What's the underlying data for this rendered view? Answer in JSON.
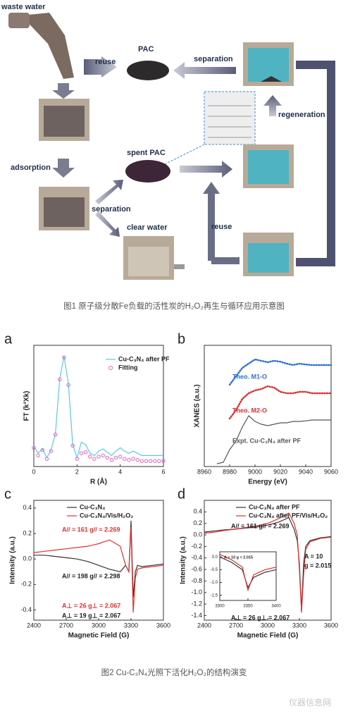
{
  "figure1": {
    "labels": [
      "waste water",
      "reuse",
      "PAC",
      "separation",
      "regeneration",
      "adsorption",
      "spent PAC",
      "separation",
      "clear water",
      "reuse"
    ]
  },
  "captions": [
    "图1 原子级分散Fe负载的活性炭的H₂O₂再生与循环应用示意图",
    "图2 Cu-C₃N₄光照下活化H₂O₂的结构演变"
  ],
  "watermark": "仪器信息网",
  "chart_data": [
    {
      "type": "line",
      "panel": "a",
      "xlabel": "R (Å)",
      "ylabel": "FT (k³Xk)",
      "xlim": [
        0,
        6
      ],
      "xticks": [
        0,
        2,
        4,
        6
      ],
      "ylim": [
        0,
        1.1
      ],
      "legend": "upper right",
      "x": [
        0,
        0.2,
        0.4,
        0.6,
        0.8,
        1,
        1.2,
        1.4,
        1.6,
        1.8,
        2,
        2.2,
        2.4,
        2.6,
        2.8,
        3,
        3.2,
        3.4,
        3.6,
        3.8,
        4,
        4.2,
        4.4,
        4.6,
        4.8,
        5,
        5.2,
        5.4,
        5.6,
        5.8,
        6
      ],
      "series": [
        {
          "name": "Cu-C₃N₄ after PF",
          "color": "#5bc8e8",
          "style": "line",
          "values": [
            0.18,
            0.12,
            0.16,
            0.08,
            0.15,
            0.3,
            0.8,
            1.0,
            0.75,
            0.2,
            0.08,
            0.22,
            0.2,
            0.12,
            0.1,
            0.14,
            0.16,
            0.13,
            0.1,
            0.14,
            0.17,
            0.14,
            0.12,
            0.14,
            0.12,
            0.1,
            0.1,
            0.1,
            0.1,
            0.1,
            0.1
          ]
        },
        {
          "name": "Fitting",
          "color": "#e060c0",
          "style": "circles",
          "values": [
            0.17,
            0.1,
            0.15,
            0.07,
            0.14,
            0.29,
            0.79,
            0.99,
            0.74,
            0.19,
            0.07,
            0.12,
            0.13,
            0.09,
            0.07,
            0.09,
            0.1,
            0.08,
            0.06,
            0.08,
            0.09,
            0.07,
            0.06,
            0.07,
            0.06,
            0.05,
            0.05,
            0.05,
            0.05,
            0.05,
            0.05
          ]
        }
      ]
    },
    {
      "type": "line",
      "panel": "b",
      "xlabel": "Energy (eV)",
      "ylabel": "XANES (a.u.)",
      "xlim": [
        8960,
        9060
      ],
      "xticks": [
        8960,
        8980,
        9000,
        9020,
        9040,
        9060
      ],
      "ylim": [
        0,
        4.3
      ],
      "legend": "inline",
      "x": [
        8970,
        8975,
        8980,
        8985,
        8990,
        8995,
        9000,
        9005,
        9010,
        9015,
        9020,
        9025,
        9030,
        9035,
        9040,
        9045,
        9050,
        9055,
        9060
      ],
      "series": [
        {
          "name": "Theo. M1-O",
          "color": "#2f6fd6",
          "style": "dotted",
          "values": [
            null,
            null,
            2.9,
            3.2,
            3.5,
            3.65,
            3.8,
            3.75,
            3.7,
            3.75,
            3.72,
            3.65,
            3.6,
            3.65,
            3.62,
            3.6,
            3.6,
            3.6,
            3.6
          ]
        },
        {
          "name": "Theo. M2-O",
          "color": "#e03030",
          "style": "dotted",
          "values": [
            null,
            null,
            1.7,
            2.0,
            2.4,
            2.6,
            2.7,
            2.75,
            2.85,
            2.8,
            2.65,
            2.6,
            2.6,
            2.65,
            2.65,
            2.6,
            2.6,
            2.6,
            2.6
          ]
        },
        {
          "name": "Expt. Cu-C₃N₄ after PF",
          "color": "#555555",
          "style": "line",
          "values": [
            0.1,
            0.15,
            0.6,
            0.9,
            1.4,
            1.8,
            1.6,
            1.5,
            1.45,
            1.5,
            1.55,
            1.55,
            1.6,
            1.6,
            1.62,
            1.65,
            1.65,
            1.65,
            1.65
          ]
        }
      ]
    },
    {
      "type": "line",
      "panel": "c",
      "xlabel": "Magnetic Field (G)",
      "ylabel": "Intensity (a.u.)",
      "xlim": [
        2400,
        3600
      ],
      "xticks": [
        2400,
        2700,
        3000,
        3300,
        3600
      ],
      "ylim": [
        -0.48,
        0.46
      ],
      "yticks": [
        -0.4,
        -0.2,
        {
          "value": 0,
          "label": "0.0"
        },
        0.2,
        0.4
      ],
      "legend": "upper left",
      "x": [
        2400,
        2500,
        2600,
        2700,
        2800,
        2900,
        3000,
        3100,
        3200,
        3250,
        3280,
        3300,
        3320,
        3340,
        3360,
        3400,
        3500,
        3600
      ],
      "series": [
        {
          "name": "Cu-C₃N₄",
          "color": "#333333",
          "style": "line",
          "values": [
            0.03,
            0.03,
            0.02,
            0.01,
            0.0,
            -0.02,
            -0.05,
            -0.08,
            -0.1,
            -0.05,
            -0.1,
            0.3,
            -0.3,
            -0.1,
            -0.05,
            -0.06,
            -0.05,
            -0.04
          ]
        },
        {
          "name": "Cu-C₃N₄/Vis/H₂O₂",
          "color": "#e03030",
          "style": "line",
          "values": [
            0.05,
            0.06,
            0.07,
            0.08,
            0.09,
            0.1,
            0.12,
            0.15,
            0.1,
            -0.05,
            -0.1,
            0.25,
            -0.42,
            -0.15,
            -0.08,
            -0.07,
            -0.06,
            -0.05
          ]
        }
      ],
      "annotations": [
        {
          "text": "A// = 161  g// = 2.269",
          "color": "#e03030"
        },
        {
          "text": "A// = 198  g// = 2.298",
          "color": "#222222"
        },
        {
          "text": "A⊥ = 26  g⊥ = 2.067",
          "color": "#e03030"
        },
        {
          "text": "A⊥ = 19  g⊥ = 2.067",
          "color": "#222222"
        }
      ]
    },
    {
      "type": "line",
      "panel": "d",
      "xlabel": "Magnetic Field (G)",
      "ylabel": "Intensity (a.u.)",
      "xlim": [
        2400,
        3600
      ],
      "xticks": [
        2400,
        2700,
        3000,
        3300,
        3600
      ],
      "ylim": [
        -1.48,
        0.6
      ],
      "yticks": [
        -1.4,
        -1.2,
        {
          "value": -1,
          "label": "-1.0"
        },
        -0.8,
        -0.6,
        -0.4,
        -0.2,
        {
          "value": 0,
          "label": "0.0"
        },
        0.2,
        0.4
      ],
      "legend": "upper left",
      "x": [
        2400,
        2500,
        2600,
        2700,
        2800,
        2900,
        3000,
        3100,
        3200,
        3250,
        3280,
        3300,
        3320,
        3340,
        3360,
        3400,
        3500,
        3600
      ],
      "series": [
        {
          "name": "Cu-C₃N₄  after PF",
          "color": "#333333",
          "style": "line",
          "values": [
            0.05,
            0.07,
            0.09,
            0.1,
            0.12,
            0.14,
            0.17,
            0.22,
            0.3,
            0.1,
            -0.1,
            -0.5,
            -1.3,
            -0.5,
            -0.2,
            -0.1,
            -0.05,
            -0.03
          ]
        },
        {
          "name": "Cu-C₃N₄  after PF/Vis/H₂O₂",
          "color": "#e03030",
          "style": "line",
          "values": [
            0.03,
            0.05,
            0.08,
            0.1,
            0.13,
            0.16,
            0.2,
            0.28,
            0.38,
            0.2,
            0.0,
            -0.6,
            -1.35,
            -0.7,
            -0.25,
            -0.12,
            -0.06,
            -0.04
          ]
        }
      ],
      "annotations": [
        {
          "text": "A// = 161  g// = 2.269",
          "color": "#222222"
        },
        {
          "text": "A = 10",
          "color": "#222222"
        },
        {
          "text": "g = 2.015",
          "color": "#222222"
        },
        {
          "text": "A⊥ = 26  g⊥ = 2.067",
          "color": "#222222"
        }
      ]
    },
    {
      "type": "line",
      "xlim": [
        3300,
        3400
      ],
      "xticks": [
        3300,
        3350,
        3400
      ],
      "ylim": [
        -1.7,
        0.2
      ],
      "yticks": [
        {
          "value": 0,
          "label": "0.0"
        },
        -0.5,
        {
          "value": -1,
          "label": "-1.0"
        },
        -1.5
      ],
      "x": [
        3300,
        3320,
        3340,
        3350,
        3360,
        3380,
        3400
      ],
      "series": [
        {
          "color": "#333333",
          "style": "line",
          "values": [
            0.0,
            -0.2,
            -0.5,
            -1.2,
            -0.8,
            -0.6,
            -0.5
          ]
        },
        {
          "color": "#e03030",
          "style": "line",
          "values": [
            0.1,
            -0.1,
            -0.4,
            -1.3,
            -0.7,
            -0.5,
            -0.4
          ]
        }
      ],
      "annotations": [
        {
          "text": "A = 10  g = 2.015",
          "color": "#222222"
        }
      ]
    }
  ]
}
